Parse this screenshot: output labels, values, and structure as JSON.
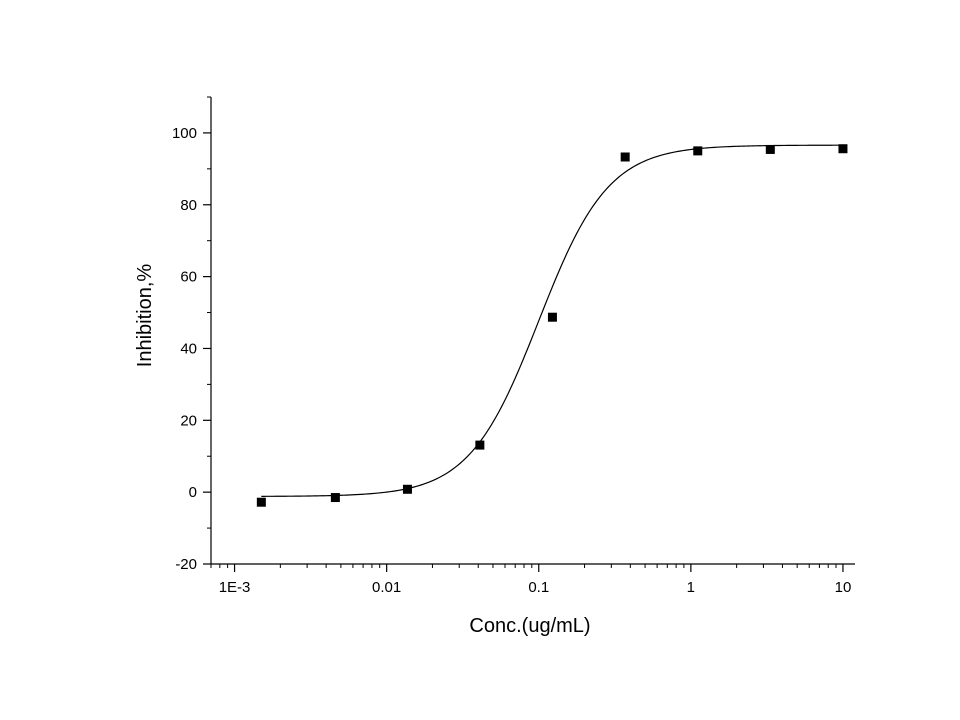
{
  "chart_data": {
    "type": "scatter",
    "title": "",
    "xlabel": "Conc.(ug/mL)",
    "ylabel": "Inhibition,%",
    "x_scale": "log",
    "xlim": [
      0.0007,
      12
    ],
    "ylim": [
      -20,
      110
    ],
    "x_ticks": [
      {
        "value": 0.001,
        "label": "1E-3"
      },
      {
        "value": 0.01,
        "label": "0.01"
      },
      {
        "value": 0.1,
        "label": "0.1"
      },
      {
        "value": 1,
        "label": "1"
      },
      {
        "value": 10,
        "label": "10"
      }
    ],
    "y_ticks": [
      {
        "value": -20,
        "label": "-20"
      },
      {
        "value": 0,
        "label": "0"
      },
      {
        "value": 20,
        "label": "20"
      },
      {
        "value": 40,
        "label": "40"
      },
      {
        "value": 60,
        "label": "60"
      },
      {
        "value": 80,
        "label": "80"
      },
      {
        "value": 100,
        "label": "100"
      }
    ],
    "grid": false,
    "legend": "none",
    "series": [
      {
        "marker": "square",
        "color": "#000000",
        "points": [
          {
            "x": 0.0015,
            "y": -2.8
          },
          {
            "x": 0.0046,
            "y": -1.5
          },
          {
            "x": 0.0137,
            "y": 0.8
          },
          {
            "x": 0.041,
            "y": 13.1
          },
          {
            "x": 0.123,
            "y": 48.7
          },
          {
            "x": 0.37,
            "y": 93.3
          },
          {
            "x": 1.11,
            "y": 95.0
          },
          {
            "x": 3.33,
            "y": 95.4
          },
          {
            "x": 10.0,
            "y": 95.6
          }
        ]
      }
    ],
    "fit_curve": {
      "model": "4PL",
      "bottom": -1.2,
      "top": 96.6,
      "ec50": 0.1,
      "hill": 1.9,
      "color": "#000000"
    }
  }
}
